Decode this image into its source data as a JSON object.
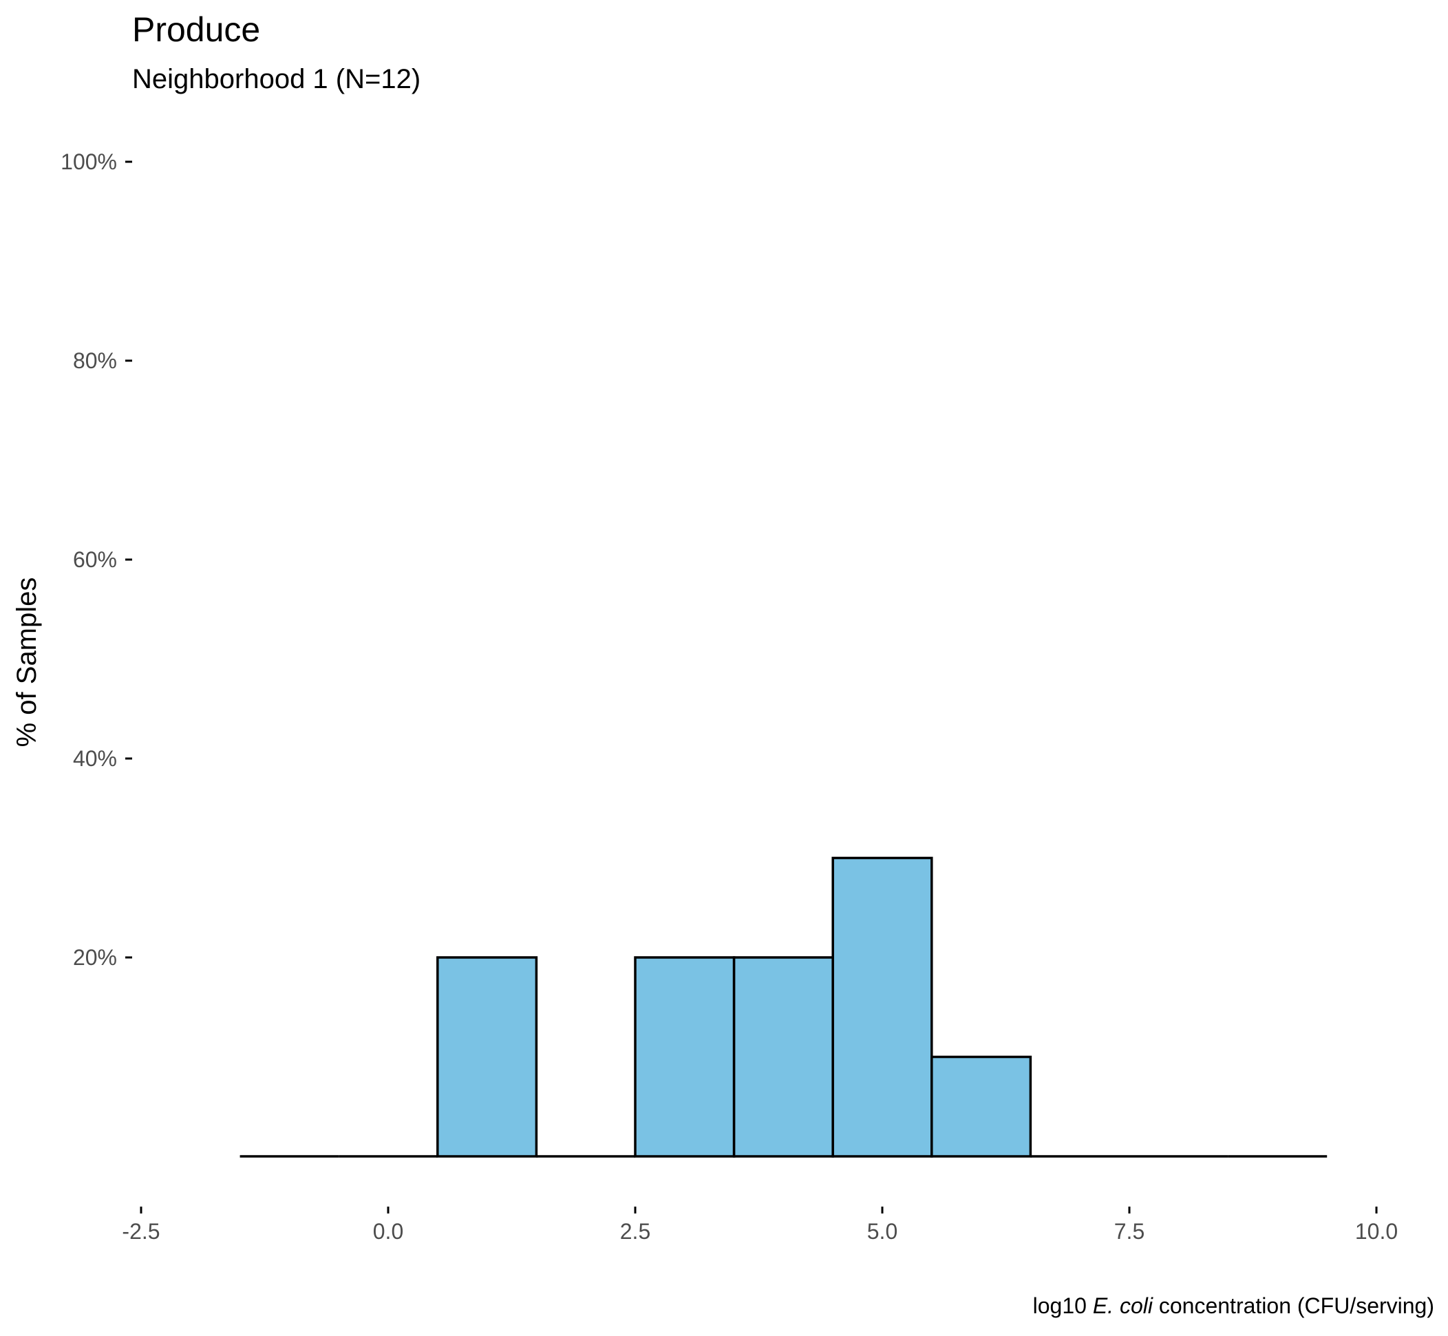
{
  "colors": {
    "bar_fill": "#7AC2E4",
    "bar_stroke": "#000000",
    "tick_label": "#4D4D4D",
    "background": "#FFFFFF"
  },
  "chart_data": {
    "type": "bar",
    "subtype": "histogram",
    "title": "Produce",
    "subtitle": "Neighborhood 1 (N=12)",
    "ylabel": "% of Samples",
    "xlabel_parts": [
      "log10 ",
      "E. coli",
      " concentration (CFU/serving)"
    ],
    "xlim": [
      -2.5,
      10.0
    ],
    "ylim": [
      0,
      100
    ],
    "x_ticks": [
      "-2.5",
      "0.0",
      "2.5",
      "5.0",
      "7.5",
      "10.0"
    ],
    "x_tick_values": [
      -2.5,
      0.0,
      2.5,
      5.0,
      7.5,
      10.0
    ],
    "y_ticks": [
      "20%",
      "40%",
      "60%",
      "80%",
      "100%"
    ],
    "y_tick_values": [
      20,
      40,
      60,
      80,
      100
    ],
    "bin_width": 1,
    "bins": [
      {
        "center": -1,
        "value": 0
      },
      {
        "center": 0,
        "value": 0
      },
      {
        "center": 1,
        "value": 20
      },
      {
        "center": 2,
        "value": 0
      },
      {
        "center": 3,
        "value": 20
      },
      {
        "center": 4,
        "value": 20
      },
      {
        "center": 5,
        "value": 30
      },
      {
        "center": 6,
        "value": 10
      },
      {
        "center": 7,
        "value": 0
      },
      {
        "center": 8,
        "value": 0
      },
      {
        "center": 9,
        "value": 0
      }
    ],
    "grid": false,
    "legend": "none"
  }
}
